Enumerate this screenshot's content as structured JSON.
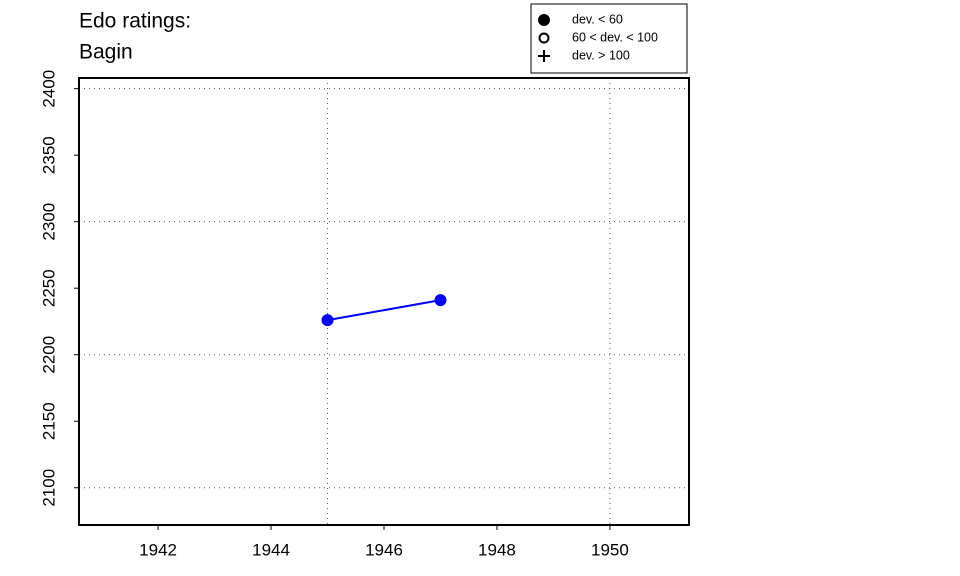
{
  "chart_data": {
    "type": "line",
    "title": [
      "Edo ratings:",
      "Bagin"
    ],
    "x": [
      1945,
      1947
    ],
    "series": [
      {
        "name": "Bagin",
        "color": "#0000ff",
        "values": [
          2226,
          2241
        ],
        "marker": "filled"
      }
    ],
    "xlim": [
      1940.6,
      1951.4
    ],
    "xticks": [
      1942,
      1944,
      1946,
      1948,
      1950
    ],
    "ylim": [
      2072,
      2408
    ],
    "yticks": [
      2100,
      2150,
      2200,
      2250,
      2300,
      2350,
      2400
    ],
    "xgrid": [
      1945,
      1950
    ],
    "ygrid": [
      2100,
      2200,
      2300,
      2400
    ],
    "legend": {
      "position": "top-right",
      "entries": [
        {
          "symbol": "filled",
          "label": "dev. < 60"
        },
        {
          "symbol": "open",
          "label": "60 < dev. < 100"
        },
        {
          "symbol": "plus",
          "label": "dev. > 100"
        }
      ]
    }
  }
}
